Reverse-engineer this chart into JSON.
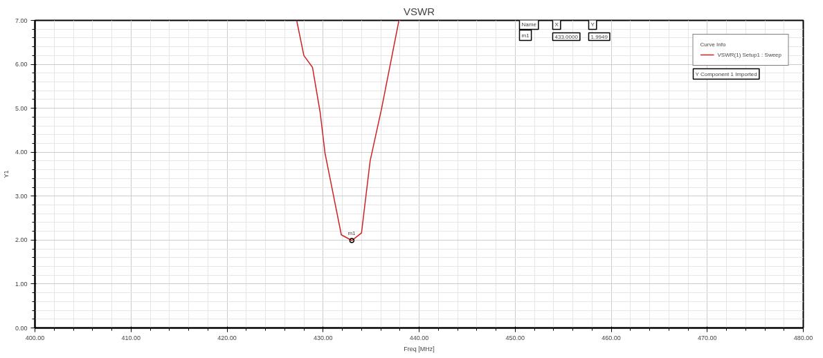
{
  "chart_data": {
    "type": "line",
    "title": "VSWR",
    "xlabel": "Freq [MHz]",
    "ylabel": "Y1",
    "xlim": [
      400,
      480
    ],
    "ylim": [
      0,
      7
    ],
    "xticks": [
      {
        "value": 400,
        "label": "400.00"
      },
      {
        "value": 410,
        "label": "410.00"
      },
      {
        "value": 420,
        "label": "420.00"
      },
      {
        "value": 430,
        "label": "430.00"
      },
      {
        "value": 440,
        "label": "440.00"
      },
      {
        "value": 450,
        "label": "450.00"
      },
      {
        "value": 460,
        "label": "460.00"
      },
      {
        "value": 470,
        "label": "470.00"
      },
      {
        "value": 480,
        "label": "480.00"
      }
    ],
    "yticks": [
      {
        "value": 0,
        "label": "0.00"
      },
      {
        "value": 1,
        "label": "1.00"
      },
      {
        "value": 2,
        "label": "2.00"
      },
      {
        "value": 3,
        "label": "3.00"
      },
      {
        "value": 4,
        "label": "4.00"
      },
      {
        "value": 5,
        "label": "5.00"
      },
      {
        "value": 6,
        "label": "6.00"
      },
      {
        "value": 7,
        "label": "7.00"
      }
    ],
    "grid": true,
    "legend": "top right",
    "legend_title": "Curve Info",
    "marker": "none",
    "line_style": "solid",
    "series": [
      {
        "name": "VSWR(1) Setup1 : Sweep",
        "color": "#d02020",
        "x": [
          427.25,
          428.0,
          428.9,
          429.7,
          430.2,
          431.9,
          433.0,
          434.0,
          434.9,
          436.1,
          437.9
        ],
        "values": [
          7.0,
          6.2,
          5.93,
          4.9,
          3.98,
          2.12,
          1.99,
          2.16,
          3.8,
          5.0,
          7.0
        ]
      }
    ],
    "annotations": [
      {
        "text": "m1",
        "x": 433.0,
        "y": 1.99
      },
      "Y Component 1 Imported",
      "Name",
      "X",
      "Y",
      "m1",
      "433.0000",
      "1.9949"
    ]
  }
}
